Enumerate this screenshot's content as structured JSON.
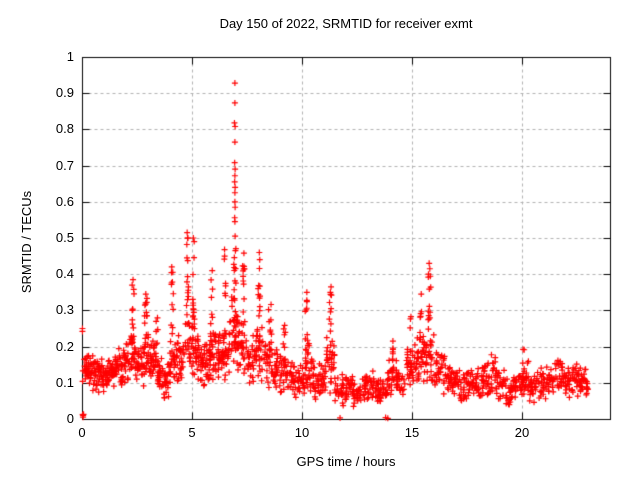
{
  "figure": {
    "background": "#ffffff",
    "text_color": "#000000"
  },
  "chart_data": {
    "type": "scatter",
    "title": "Day 150 of 2022, SRMTID for receiver exmt",
    "xlabel": "GPS time / hours",
    "ylabel": "SRMTID / TECUs",
    "xlim": [
      0,
      24
    ],
    "ylim": [
      0,
      1
    ],
    "xticks": [
      0,
      5,
      10,
      15,
      20
    ],
    "xtick_labels": [
      "0",
      "5",
      "10",
      "15",
      "20"
    ],
    "yticks": [
      0,
      0.1,
      0.2,
      0.3,
      0.4,
      0.5,
      0.6,
      0.7,
      0.8,
      0.9,
      1
    ],
    "ytick_labels": [
      "0",
      "0.1",
      "0.2",
      "0.3",
      "0.4",
      "0.5",
      "0.6",
      "0.7",
      "0.8",
      "0.9",
      "1"
    ],
    "grid": {
      "show": true,
      "style": "dashed",
      "color": "#b0b0b0"
    },
    "frame_color": "#000000",
    "marker": {
      "shape": "plus",
      "color": "#ff0000",
      "size": 7
    },
    "legend": {
      "show": false
    },
    "seed": 1150,
    "band_bins": [
      [
        0.0,
        0.3,
        0.08,
        0.2,
        24
      ],
      [
        0.3,
        0.6,
        0.07,
        0.19,
        26
      ],
      [
        0.6,
        0.9,
        0.07,
        0.18,
        26
      ],
      [
        0.9,
        1.2,
        0.07,
        0.17,
        26
      ],
      [
        1.2,
        1.5,
        0.08,
        0.18,
        26
      ],
      [
        1.5,
        1.8,
        0.08,
        0.2,
        26
      ],
      [
        1.8,
        2.1,
        0.08,
        0.22,
        26
      ],
      [
        2.1,
        2.45,
        0.09,
        0.26,
        28
      ],
      [
        2.45,
        2.8,
        0.08,
        0.22,
        26
      ],
      [
        2.8,
        3.1,
        0.09,
        0.24,
        26
      ],
      [
        3.1,
        3.4,
        0.08,
        0.22,
        26
      ],
      [
        3.4,
        3.7,
        0.06,
        0.17,
        26
      ],
      [
        3.7,
        4.0,
        0.05,
        0.16,
        26
      ],
      [
        4.0,
        4.3,
        0.08,
        0.24,
        26
      ],
      [
        4.3,
        4.6,
        0.09,
        0.24,
        26
      ],
      [
        4.6,
        5.2,
        0.1,
        0.3,
        40
      ],
      [
        5.2,
        5.5,
        0.09,
        0.24,
        26
      ],
      [
        5.5,
        5.8,
        0.08,
        0.22,
        26
      ],
      [
        5.8,
        6.1,
        0.1,
        0.26,
        26
      ],
      [
        6.1,
        6.4,
        0.1,
        0.24,
        26
      ],
      [
        6.4,
        6.7,
        0.1,
        0.26,
        26
      ],
      [
        6.7,
        7.1,
        0.11,
        0.35,
        34
      ],
      [
        7.1,
        7.5,
        0.1,
        0.3,
        30
      ],
      [
        7.5,
        7.9,
        0.08,
        0.24,
        26
      ],
      [
        7.9,
        8.3,
        0.08,
        0.28,
        28
      ],
      [
        8.3,
        8.7,
        0.08,
        0.26,
        26
      ],
      [
        8.7,
        9.0,
        0.07,
        0.2,
        24
      ],
      [
        9.0,
        9.4,
        0.06,
        0.2,
        26
      ],
      [
        9.4,
        9.8,
        0.05,
        0.16,
        24
      ],
      [
        9.8,
        10.1,
        0.05,
        0.15,
        22
      ],
      [
        10.1,
        10.45,
        0.07,
        0.24,
        26
      ],
      [
        10.45,
        10.8,
        0.05,
        0.17,
        24
      ],
      [
        10.8,
        11.1,
        0.05,
        0.15,
        22
      ],
      [
        11.1,
        11.5,
        0.06,
        0.24,
        28
      ],
      [
        11.5,
        11.9,
        0.03,
        0.13,
        26
      ],
      [
        11.9,
        12.3,
        0.04,
        0.13,
        26
      ],
      [
        12.3,
        12.7,
        0.025,
        0.11,
        26
      ],
      [
        12.7,
        13.1,
        0.04,
        0.14,
        26
      ],
      [
        13.1,
        13.5,
        0.04,
        0.14,
        26
      ],
      [
        13.5,
        13.9,
        0.03,
        0.12,
        26
      ],
      [
        13.9,
        14.3,
        0.05,
        0.17,
        26
      ],
      [
        14.3,
        14.7,
        0.05,
        0.16,
        24
      ],
      [
        14.7,
        15.1,
        0.07,
        0.22,
        26
      ],
      [
        15.1,
        15.5,
        0.08,
        0.26,
        28
      ],
      [
        15.5,
        16.0,
        0.08,
        0.3,
        32
      ],
      [
        16.0,
        16.4,
        0.06,
        0.2,
        26
      ],
      [
        16.4,
        16.8,
        0.05,
        0.18,
        26
      ],
      [
        16.8,
        17.2,
        0.05,
        0.17,
        26
      ],
      [
        17.2,
        17.6,
        0.04,
        0.14,
        26
      ],
      [
        17.6,
        18.0,
        0.05,
        0.15,
        26
      ],
      [
        18.0,
        18.4,
        0.05,
        0.18,
        26
      ],
      [
        18.4,
        18.8,
        0.05,
        0.19,
        26
      ],
      [
        18.8,
        19.2,
        0.04,
        0.14,
        26
      ],
      [
        19.2,
        19.6,
        0.03,
        0.12,
        26
      ],
      [
        19.6,
        20.0,
        0.04,
        0.14,
        26
      ],
      [
        20.0,
        20.35,
        0.05,
        0.17,
        24
      ],
      [
        20.35,
        20.7,
        0.04,
        0.13,
        24
      ],
      [
        20.7,
        21.1,
        0.04,
        0.15,
        24
      ],
      [
        21.1,
        21.5,
        0.05,
        0.16,
        24
      ],
      [
        21.5,
        21.9,
        0.06,
        0.17,
        26
      ],
      [
        21.9,
        22.3,
        0.05,
        0.15,
        26
      ],
      [
        22.3,
        22.7,
        0.06,
        0.16,
        28
      ],
      [
        22.7,
        23.0,
        0.06,
        0.15,
        26
      ]
    ],
    "spike_columns": [
      [
        2.3,
        0.15,
        0.2,
        0.38,
        12
      ],
      [
        2.9,
        0.12,
        0.18,
        0.34,
        10
      ],
      [
        3.4,
        0.1,
        0.18,
        0.28,
        7
      ],
      [
        4.1,
        0.12,
        0.22,
        0.41,
        10
      ],
      [
        4.8,
        0.1,
        0.24,
        0.5,
        14
      ],
      [
        5.08,
        0.1,
        0.24,
        0.48,
        12
      ],
      [
        5.9,
        0.1,
        0.2,
        0.4,
        10
      ],
      [
        6.5,
        0.1,
        0.22,
        0.45,
        9
      ],
      [
        6.95,
        0.1,
        0.18,
        0.5,
        18
      ],
      [
        7.35,
        0.1,
        0.2,
        0.45,
        10
      ],
      [
        8.05,
        0.1,
        0.16,
        0.44,
        12
      ],
      [
        8.55,
        0.15,
        0.14,
        0.32,
        10
      ],
      [
        9.2,
        0.12,
        0.13,
        0.26,
        8
      ],
      [
        10.2,
        0.12,
        0.14,
        0.34,
        11
      ],
      [
        11.3,
        0.12,
        0.13,
        0.36,
        12
      ],
      [
        14.1,
        0.1,
        0.11,
        0.22,
        8
      ],
      [
        14.95,
        0.1,
        0.13,
        0.29,
        8
      ],
      [
        15.4,
        0.1,
        0.14,
        0.33,
        8
      ],
      [
        15.8,
        0.12,
        0.14,
        0.42,
        16
      ],
      [
        20.05,
        0.1,
        0.1,
        0.2,
        8
      ]
    ],
    "outlier_points": [
      [
        6.95,
        0.928
      ],
      [
        6.95,
        0.873
      ],
      [
        6.93,
        0.818
      ],
      [
        6.96,
        0.808
      ],
      [
        6.95,
        0.765
      ],
      [
        6.94,
        0.708
      ],
      [
        6.96,
        0.69
      ],
      [
        6.95,
        0.672
      ],
      [
        6.94,
        0.655
      ],
      [
        6.96,
        0.64
      ],
      [
        6.95,
        0.625
      ],
      [
        6.95,
        0.6
      ],
      [
        6.96,
        0.585
      ],
      [
        6.94,
        0.556
      ],
      [
        6.95,
        0.545
      ],
      [
        6.96,
        0.505
      ],
      [
        0.02,
        0.25
      ],
      [
        0.02,
        0.242
      ],
      [
        0.03,
        0.012
      ],
      [
        0.05,
        0.01
      ],
      [
        0.07,
        0.013
      ],
      [
        0.05,
        0.005
      ],
      [
        11.73,
        0.003
      ],
      [
        13.8,
        0.004
      ],
      [
        13.9,
        0.002
      ],
      [
        4.78,
        0.515
      ],
      [
        4.81,
        0.5
      ],
      [
        5.06,
        0.5
      ],
      [
        5.1,
        0.49
      ],
      [
        15.78,
        0.43
      ],
      [
        15.81,
        0.415
      ],
      [
        15.75,
        0.4
      ],
      [
        4.08,
        0.42
      ],
      [
        10.22,
        0.35
      ],
      [
        11.32,
        0.365
      ],
      [
        11.29,
        0.35
      ],
      [
        2.32,
        0.385
      ],
      [
        2.28,
        0.37
      ],
      [
        5.92,
        0.41
      ],
      [
        6.48,
        0.468
      ],
      [
        7.36,
        0.458
      ],
      [
        8.06,
        0.46
      ],
      [
        8.08,
        0.44
      ],
      [
        2.9,
        0.345
      ],
      [
        15.42,
        0.345
      ]
    ]
  }
}
